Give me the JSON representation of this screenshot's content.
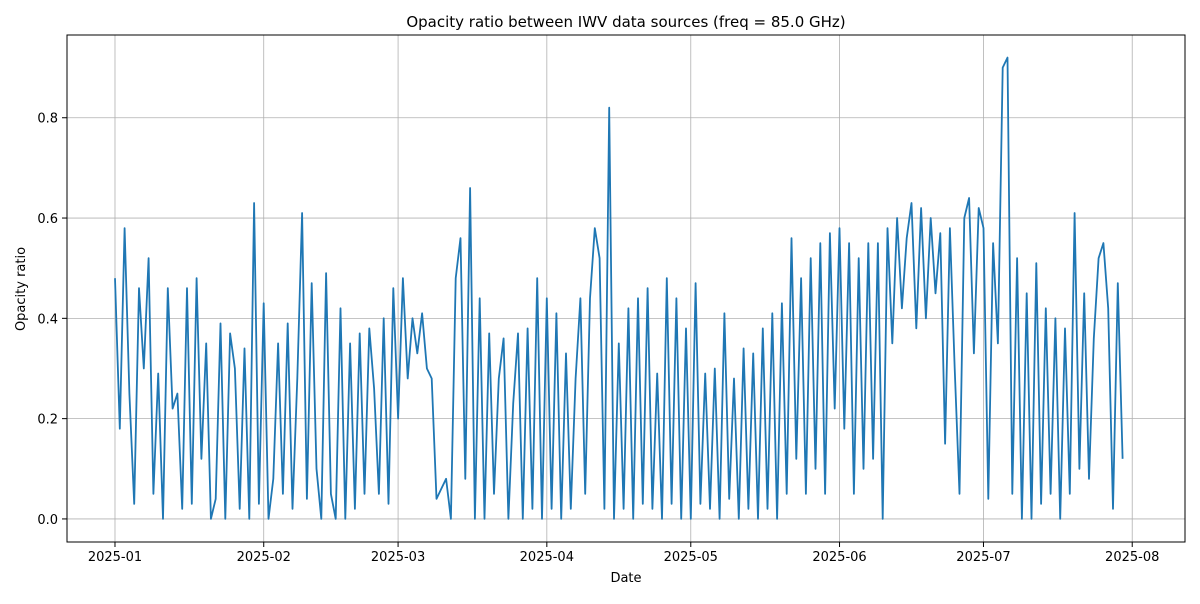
{
  "chart_data": {
    "type": "line",
    "title": "Opacity ratio between IWV data sources (freq = 85.0 GHz)",
    "xlabel": "Date",
    "ylabel": "Opacity ratio",
    "x_range": [
      "2024-12-22",
      "2025-08-12"
    ],
    "ylim": [
      -0.046,
      0.965
    ],
    "x_ticks": [
      {
        "date": "2025-01-01",
        "label": "2025-01"
      },
      {
        "date": "2025-02-01",
        "label": "2025-02"
      },
      {
        "date": "2025-03-01",
        "label": "2025-03"
      },
      {
        "date": "2025-04-01",
        "label": "2025-04"
      },
      {
        "date": "2025-05-01",
        "label": "2025-05"
      },
      {
        "date": "2025-06-01",
        "label": "2025-06"
      },
      {
        "date": "2025-07-01",
        "label": "2025-07"
      },
      {
        "date": "2025-08-01",
        "label": "2025-08"
      }
    ],
    "y_ticks": [
      {
        "value": 0.0,
        "label": "0.0"
      },
      {
        "value": 0.2,
        "label": "0.2"
      },
      {
        "value": 0.4,
        "label": "0.4"
      },
      {
        "value": 0.6,
        "label": "0.6"
      },
      {
        "value": 0.8,
        "label": "0.8"
      }
    ],
    "grid": true,
    "series_color": "#1f77b4",
    "series": [
      {
        "x": [
          "2025-01-01",
          "2025-01-02",
          "2025-01-03",
          "2025-01-04",
          "2025-01-05",
          "2025-01-06",
          "2025-01-07",
          "2025-01-08",
          "2025-01-09",
          "2025-01-10",
          "2025-01-11",
          "2025-01-12",
          "2025-01-13",
          "2025-01-14",
          "2025-01-15",
          "2025-01-16",
          "2025-01-17",
          "2025-01-18",
          "2025-01-19",
          "2025-01-20",
          "2025-01-21",
          "2025-01-22",
          "2025-01-23",
          "2025-01-24",
          "2025-01-25",
          "2025-01-26",
          "2025-01-27",
          "2025-01-28",
          "2025-01-29",
          "2025-01-30",
          "2025-01-31",
          "2025-02-01",
          "2025-02-02",
          "2025-02-03",
          "2025-02-04",
          "2025-02-05",
          "2025-02-06",
          "2025-02-07",
          "2025-02-08",
          "2025-02-09",
          "2025-02-10",
          "2025-02-11",
          "2025-02-12",
          "2025-02-13",
          "2025-02-14",
          "2025-02-15",
          "2025-02-16",
          "2025-02-17",
          "2025-02-18",
          "2025-02-19",
          "2025-02-20",
          "2025-02-21",
          "2025-02-22",
          "2025-02-23",
          "2025-02-24",
          "2025-02-25",
          "2025-02-26",
          "2025-02-27",
          "2025-02-28",
          "2025-03-01",
          "2025-03-02",
          "2025-03-03",
          "2025-03-04",
          "2025-03-05",
          "2025-03-06",
          "2025-03-07",
          "2025-03-08",
          "2025-03-09",
          "2025-03-10",
          "2025-03-11",
          "2025-03-12",
          "2025-03-13",
          "2025-03-14",
          "2025-03-15",
          "2025-03-16",
          "2025-03-17",
          "2025-03-18",
          "2025-03-19",
          "2025-03-20",
          "2025-03-21",
          "2025-03-22",
          "2025-03-23",
          "2025-03-24",
          "2025-03-25",
          "2025-03-26",
          "2025-03-27",
          "2025-03-28",
          "2025-03-29",
          "2025-03-30",
          "2025-03-31",
          "2025-04-01",
          "2025-04-02",
          "2025-04-03",
          "2025-04-04",
          "2025-04-05",
          "2025-04-06",
          "2025-04-07",
          "2025-04-08",
          "2025-04-09",
          "2025-04-10",
          "2025-04-11",
          "2025-04-12",
          "2025-04-13",
          "2025-04-14",
          "2025-04-15",
          "2025-04-16",
          "2025-04-17",
          "2025-04-18",
          "2025-04-19",
          "2025-04-20",
          "2025-04-21",
          "2025-04-22",
          "2025-04-23",
          "2025-04-24",
          "2025-04-25",
          "2025-04-26",
          "2025-04-27",
          "2025-04-28",
          "2025-04-29",
          "2025-04-30",
          "2025-05-01",
          "2025-05-02",
          "2025-05-03",
          "2025-05-04",
          "2025-05-05",
          "2025-05-06",
          "2025-05-07",
          "2025-05-08",
          "2025-05-09",
          "2025-05-10",
          "2025-05-11",
          "2025-05-12",
          "2025-05-13",
          "2025-05-14",
          "2025-05-15",
          "2025-05-16",
          "2025-05-17",
          "2025-05-18",
          "2025-05-19",
          "2025-05-20",
          "2025-05-21",
          "2025-05-22",
          "2025-05-23",
          "2025-05-24",
          "2025-05-25",
          "2025-05-26",
          "2025-05-27",
          "2025-05-28",
          "2025-05-29",
          "2025-05-30",
          "2025-05-31",
          "2025-06-01",
          "2025-06-02",
          "2025-06-03",
          "2025-06-04",
          "2025-06-05",
          "2025-06-06",
          "2025-06-07",
          "2025-06-08",
          "2025-06-09",
          "2025-06-10",
          "2025-06-11",
          "2025-06-12",
          "2025-06-13",
          "2025-06-14",
          "2025-06-15",
          "2025-06-16",
          "2025-06-17",
          "2025-06-18",
          "2025-06-19",
          "2025-06-20",
          "2025-06-21",
          "2025-06-22",
          "2025-06-23",
          "2025-06-24",
          "2025-06-25",
          "2025-06-26",
          "2025-06-27",
          "2025-06-28",
          "2025-06-29",
          "2025-06-30",
          "2025-07-01",
          "2025-07-02",
          "2025-07-03",
          "2025-07-04",
          "2025-07-05",
          "2025-07-06",
          "2025-07-07",
          "2025-07-08",
          "2025-07-09",
          "2025-07-10",
          "2025-07-11",
          "2025-07-12",
          "2025-07-13",
          "2025-07-14",
          "2025-07-15",
          "2025-07-16",
          "2025-07-17",
          "2025-07-18",
          "2025-07-19",
          "2025-07-20",
          "2025-07-21",
          "2025-07-22",
          "2025-07-23",
          "2025-07-24",
          "2025-07-25",
          "2025-07-26",
          "2025-07-27",
          "2025-07-28",
          "2025-07-29",
          "2025-07-30"
        ],
        "y": [
          0.48,
          0.18,
          0.58,
          0.25,
          0.03,
          0.46,
          0.3,
          0.52,
          0.05,
          0.29,
          0.0,
          0.46,
          0.22,
          0.25,
          0.02,
          0.46,
          0.03,
          0.48,
          0.12,
          0.35,
          0.0,
          0.04,
          0.39,
          0.0,
          0.37,
          0.3,
          0.02,
          0.34,
          0.0,
          0.63,
          0.03,
          0.43,
          0.0,
          0.08,
          0.35,
          0.05,
          0.39,
          0.02,
          0.28,
          0.61,
          0.04,
          0.47,
          0.1,
          0.0,
          0.49,
          0.05,
          0.0,
          0.42,
          0.0,
          0.35,
          0.02,
          0.37,
          0.05,
          0.38,
          0.26,
          0.05,
          0.4,
          0.03,
          0.46,
          0.2,
          0.48,
          0.28,
          0.4,
          0.33,
          0.41,
          0.3,
          0.28,
          0.04,
          0.06,
          0.08,
          0.0,
          0.48,
          0.56,
          0.08,
          0.66,
          0.0,
          0.44,
          0.0,
          0.37,
          0.05,
          0.28,
          0.36,
          0.0,
          0.23,
          0.37,
          0.0,
          0.38,
          0.02,
          0.48,
          0.0,
          0.44,
          0.02,
          0.41,
          0.0,
          0.33,
          0.02,
          0.28,
          0.44,
          0.05,
          0.44,
          0.58,
          0.52,
          0.02,
          0.82,
          0.0,
          0.35,
          0.02,
          0.42,
          0.0,
          0.44,
          0.03,
          0.46,
          0.02,
          0.29,
          0.0,
          0.48,
          0.03,
          0.44,
          0.0,
          0.38,
          0.0,
          0.47,
          0.03,
          0.29,
          0.02,
          0.3,
          0.0,
          0.41,
          0.04,
          0.28,
          0.0,
          0.34,
          0.02,
          0.33,
          0.0,
          0.38,
          0.02,
          0.41,
          0.0,
          0.43,
          0.05,
          0.56,
          0.12,
          0.48,
          0.05,
          0.52,
          0.1,
          0.55,
          0.05,
          0.57,
          0.22,
          0.58,
          0.18,
          0.55,
          0.05,
          0.52,
          0.1,
          0.55,
          0.12,
          0.55,
          0.0,
          0.58,
          0.35,
          0.6,
          0.42,
          0.56,
          0.63,
          0.38,
          0.62,
          0.4,
          0.6,
          0.45,
          0.57,
          0.15,
          0.58,
          0.3,
          0.05,
          0.6,
          0.64,
          0.33,
          0.62,
          0.58,
          0.04,
          0.55,
          0.35,
          0.9,
          0.92,
          0.05,
          0.52,
          0.0,
          0.45,
          0.0,
          0.51,
          0.03,
          0.42,
          0.05,
          0.4,
          0.0,
          0.38,
          0.05,
          0.61,
          0.1,
          0.45,
          0.08,
          0.36,
          0.52,
          0.55,
          0.42,
          0.02,
          0.47,
          0.12
        ]
      }
    ]
  }
}
